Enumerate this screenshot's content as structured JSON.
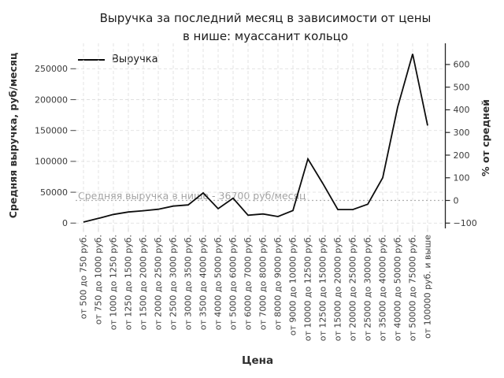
{
  "title": "Выручка за последний месяц в зависимости от цены\nв нише: муассанит кольцо",
  "legend": {
    "label": "Выручка"
  },
  "annotation": {
    "text": "Средняя выручка в нише - 36700 руб/месяц"
  },
  "colors": {
    "line": "#0d0d0d",
    "grid": "#e0e0e0",
    "avg_line": "#b0b0b0",
    "annotation_text": "#a3a3a3",
    "tick_text": "#3b3b3b",
    "right_spine": "#262626",
    "left_tick_mark": "#555555",
    "bottom_tick_mark": "#cfcfcf",
    "background": "#ffffff"
  },
  "chart_data": {
    "type": "line",
    "title": "Выручка за последний месяц в зависимости от цены в нише: муассанит кольцо",
    "xlabel": "Цена",
    "ylabel_left": "Средняя выручка, руб/месяц",
    "ylabel_right": "% от средней",
    "legend_position": "upper left",
    "grid": true,
    "categories": [
      "от 500 до 750 руб.",
      "от 750 до 1000 руб.",
      "от 1000 до 1250 руб.",
      "от 1250 до 1500 руб.",
      "от 1500 до 2000 руб.",
      "от 2000 до 2500 руб.",
      "от 2500 до 3000 руб.",
      "от 3000 до 3500 руб.",
      "от 3500 до 4000 руб.",
      "от 4000 до 5000 руб.",
      "от 5000 до 6000 руб.",
      "от 6000 до 7000 руб.",
      "от 7000 до 8000 руб.",
      "от 8000 до 9000 руб.",
      "от 9000 до 10000 руб.",
      "от 10000 до 12500 руб.",
      "от 12500 до 15000 руб.",
      "от 15000 до 20000 руб.",
      "от 20000 до 25000 руб.",
      "от 25000 до 30000 руб.",
      "от 35000 до 40000 руб.",
      "от 40000 до 50000 руб.",
      "от 50000 до 75000 руб.",
      "от 100000 руб. и выше"
    ],
    "series": [
      {
        "name": "Выручка",
        "values": [
          1600,
          7700,
          14000,
          18000,
          20000,
          22500,
          27500,
          29500,
          48900,
          23400,
          40300,
          12800,
          14800,
          10600,
          20400,
          104000,
          64000,
          22000,
          22000,
          30600,
          73500,
          188000,
          274000,
          158000
        ]
      }
    ],
    "average_line": {
      "value": 36700,
      "label": "Средняя выручка в нише - 36700 руб/месяц",
      "style": "dotted"
    },
    "yaxis_left": {
      "ticks": [
        0,
        50000,
        100000,
        150000,
        200000,
        250000
      ],
      "range": [
        -8500,
        291000
      ]
    },
    "yaxis_right": {
      "ticks": [
        -100,
        0,
        100,
        200,
        300,
        400,
        500,
        600
      ],
      "unit": "%",
      "range": [
        -123,
        694
      ]
    }
  }
}
